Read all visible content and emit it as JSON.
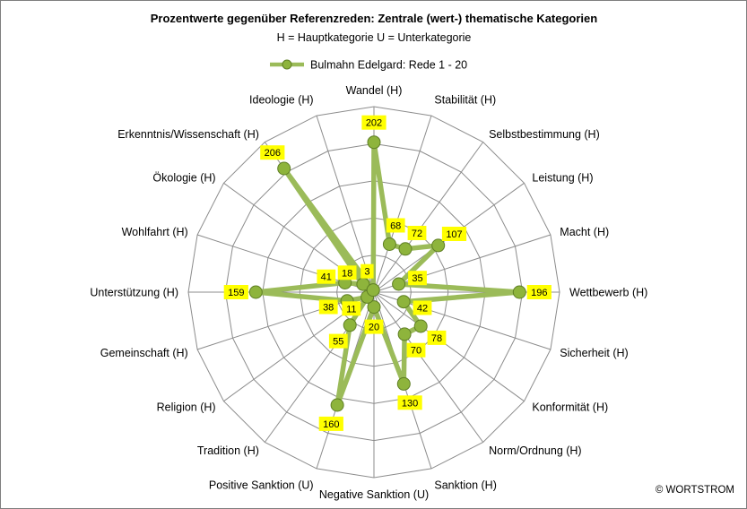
{
  "chart_data": {
    "type": "radar",
    "title": "Prozentwerte gegenüber Referenzreden: Zentrale (wert-) thematische Kategorien",
    "subtitle": "H = Hauptkategorie U = Unterkategorie",
    "legend_position": "top",
    "grid": true,
    "rlim": [
      0,
      250
    ],
    "categories": [
      "Wandel (H)",
      "Stabilität (H)",
      "Selbstbestimmung (H)",
      "Leistung (H)",
      "Macht (H)",
      "Wettbewerb (H)",
      "Sicherheit (H)",
      "Konformität (H)",
      "Norm/Ordnung (H)",
      "Sanktion (H)",
      "Negative Sanktion (U)",
      "Positive Sanktion (U)",
      "Tradition (H)",
      "Religion (H)",
      "Gemeinschaft (H)",
      "Unterstützung (H)",
      "Wohlfahrt (H)",
      "Ökologie (H)",
      "Erkenntnis/Wissenschaft (H)",
      "Ideologie (H)"
    ],
    "series": [
      {
        "name": "Bulmahn Edelgard: Rede 1 - 20",
        "color": "#9bbb59",
        "values": [
          202,
          68,
          72,
          107,
          35,
          196,
          42,
          78,
          70,
          130,
          20,
          160,
          55,
          11,
          38,
          159,
          41,
          18,
          206,
          3
        ]
      }
    ]
  },
  "copyright": "© WORTSTROM",
  "colors": {
    "series": "#9bbb59",
    "marker_fill": "#8eb43c",
    "marker_edge": "#5f7f24",
    "label_bg": "#ffff00",
    "grid": "#8c8c8c"
  }
}
